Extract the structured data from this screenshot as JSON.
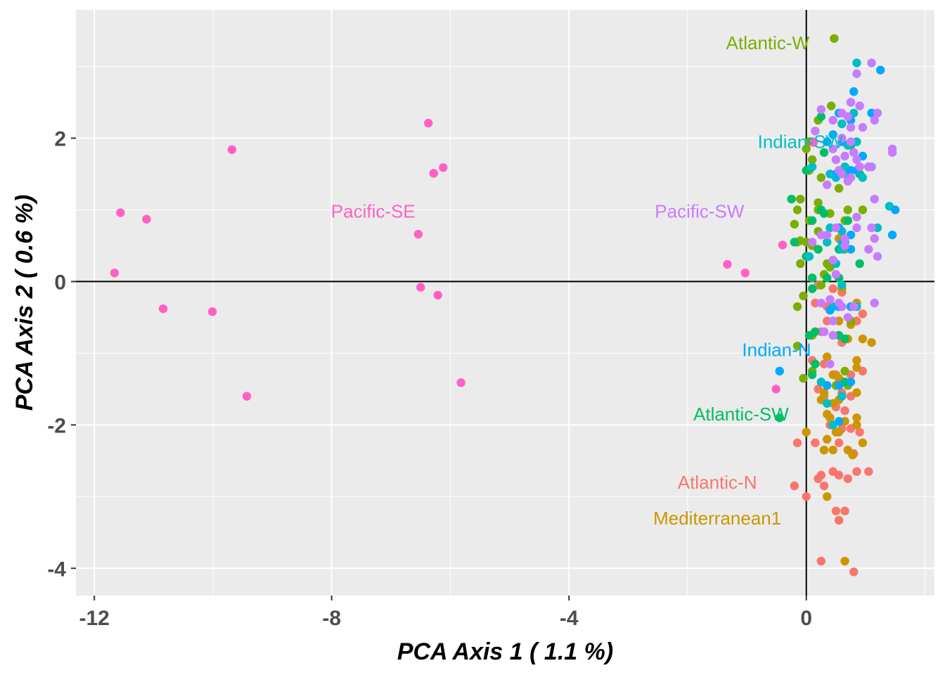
{
  "chart_data": {
    "type": "scatter",
    "title": "",
    "xlabel": "PCA Axis 1 ( 1.1 %)",
    "ylabel": "PCA Axis 2 ( 0.6 %)",
    "xlim": [
      -12.31,
      2.16
    ],
    "ylim": [
      -4.38,
      3.79
    ],
    "x_ticks": [
      -12,
      -8,
      -4,
      0
    ],
    "x_tick_labels": [
      "-12",
      "-8",
      "-4",
      "0"
    ],
    "y_ticks": [
      -4,
      -2,
      0,
      2
    ],
    "y_tick_labels": [
      "-4",
      "-2",
      "0",
      "2"
    ],
    "x_minor_ticks": [
      -10,
      -6,
      -2,
      2
    ],
    "y_minor_ticks": [
      -3,
      -1,
      1,
      3
    ],
    "grid": true,
    "reference_lines": {
      "x": 0,
      "y": 0
    },
    "background": "#ebebeb",
    "legend": "none (direct labels)",
    "series": [
      {
        "name": "Atlantic-N",
        "color": "#f8766d",
        "label_pos": [
          -1.5,
          -2.8
        ],
        "points": [
          [
            0.2,
            -0.05
          ],
          [
            0.45,
            -0.1
          ],
          [
            0.6,
            -0.15
          ],
          [
            0.25,
            -0.7
          ],
          [
            0.35,
            -0.55
          ],
          [
            0.85,
            -0.55
          ],
          [
            0.6,
            -0.85
          ],
          [
            0.95,
            -0.45
          ],
          [
            0.1,
            -1.1
          ],
          [
            0.3,
            -1.15
          ],
          [
            0.5,
            -1.3
          ],
          [
            0.75,
            -1.3
          ],
          [
            0.95,
            -1.25
          ],
          [
            0.2,
            -1.5
          ],
          [
            0.3,
            -1.6
          ],
          [
            0.6,
            -1.55
          ],
          [
            0.75,
            -1.6
          ],
          [
            0.5,
            -1.75
          ],
          [
            0.65,
            -1.8
          ],
          [
            0.4,
            -2.0
          ],
          [
            0.6,
            -2.05
          ],
          [
            0.75,
            -2.05
          ],
          [
            0.9,
            -2.1
          ],
          [
            -0.15,
            -2.25
          ],
          [
            0.15,
            -2.25
          ],
          [
            0.3,
            -2.35
          ],
          [
            0.55,
            -2.25
          ],
          [
            0.8,
            -2.4
          ],
          [
            0.25,
            -2.7
          ],
          [
            0.45,
            -2.65
          ],
          [
            0.55,
            -2.7
          ],
          [
            0.7,
            -2.75
          ],
          [
            0.85,
            -2.65
          ],
          [
            0.2,
            -2.75
          ],
          [
            0.3,
            -2.85
          ],
          [
            -0.2,
            -2.85
          ],
          [
            0.0,
            -3.0
          ],
          [
            0.5,
            -3.2
          ],
          [
            0.55,
            -3.33
          ],
          [
            0.65,
            -3.2
          ],
          [
            0.25,
            -3.9
          ],
          [
            0.8,
            -4.05
          ],
          [
            1.05,
            -2.65
          ],
          [
            0.15,
            -0.3
          ],
          [
            0.35,
            -0.35
          ]
        ]
      },
      {
        "name": "Mediterranean1",
        "color": "#cd9600",
        "label_pos": [
          -1.5,
          -3.3
        ],
        "points": [
          [
            0.55,
            0.6
          ],
          [
            0.6,
            -0.1
          ],
          [
            0.85,
            -0.3
          ],
          [
            0.55,
            -0.55
          ],
          [
            0.75,
            -0.6
          ],
          [
            0.7,
            -0.8
          ],
          [
            0.95,
            -0.8
          ],
          [
            1.1,
            -0.85
          ],
          [
            0.85,
            -1.1
          ],
          [
            0.85,
            -1.2
          ],
          [
            0.35,
            -1.05
          ],
          [
            0.45,
            -1.3
          ],
          [
            0.55,
            -1.35
          ],
          [
            0.3,
            -1.55
          ],
          [
            0.45,
            -1.7
          ],
          [
            0.35,
            -1.85
          ],
          [
            0.55,
            -1.65
          ],
          [
            0.4,
            -1.9
          ],
          [
            0.65,
            -1.95
          ],
          [
            0.85,
            -1.55
          ],
          [
            0.85,
            -1.9
          ],
          [
            0.5,
            -2.1
          ],
          [
            0.35,
            -2.2
          ],
          [
            0.55,
            -2.1
          ],
          [
            0.85,
            -2.0
          ],
          [
            0.0,
            -2.1
          ],
          [
            0.3,
            -2.35
          ],
          [
            0.45,
            -2.35
          ],
          [
            0.7,
            -2.35
          ],
          [
            0.78,
            -2.42
          ],
          [
            0.95,
            -2.25
          ],
          [
            0.35,
            -3.0
          ],
          [
            0.65,
            -3.9
          ],
          [
            0.25,
            -1.65
          ]
        ]
      },
      {
        "name": "Atlantic-W",
        "color": "#7cae00",
        "label_pos": [
          -0.65,
          3.33
        ],
        "points": [
          [
            0.47,
            3.39
          ],
          [
            0.2,
            2.25
          ],
          [
            0.42,
            2.45
          ],
          [
            0.05,
            1.95
          ],
          [
            0.0,
            1.85
          ],
          [
            0.1,
            1.7
          ],
          [
            0.05,
            1.55
          ],
          [
            0.25,
            1.45
          ],
          [
            0.55,
            1.3
          ],
          [
            0.2,
            1.1
          ],
          [
            -0.1,
            1.15
          ],
          [
            -0.15,
            1.0
          ],
          [
            0.2,
            1.0
          ],
          [
            0.4,
            0.95
          ],
          [
            0.05,
            0.85
          ],
          [
            0.65,
            0.85
          ],
          [
            0.7,
            1.0
          ],
          [
            -0.2,
            0.8
          ],
          [
            0.2,
            0.7
          ],
          [
            -0.15,
            0.55
          ],
          [
            -0.1,
            0.57
          ],
          [
            0.0,
            0.55
          ],
          [
            0.1,
            0.5
          ],
          [
            0.65,
            0.45
          ],
          [
            0.4,
            0.2
          ],
          [
            0.95,
            1.0
          ],
          [
            0.1,
            0.05
          ],
          [
            -0.1,
            0.25
          ],
          [
            0.35,
            0.25
          ],
          [
            0.3,
            0.1
          ],
          [
            -0.05,
            -0.2
          ],
          [
            -0.15,
            -0.35
          ],
          [
            -0.15,
            -0.9
          ],
          [
            0.1,
            -1.25
          ],
          [
            0.5,
            -1.45
          ],
          [
            0.75,
            -0.55
          ],
          [
            0.65,
            -1.25
          ],
          [
            0.7,
            -1.45
          ],
          [
            -0.05,
            -1.35
          ],
          [
            0.25,
            -0.05
          ],
          [
            0.1,
            -0.75
          ]
        ]
      },
      {
        "name": "Atlantic-SW",
        "color": "#00be67",
        "label_pos": [
          -1.1,
          -1.85
        ],
        "points": [
          [
            0.25,
            2.3
          ],
          [
            0.1,
            1.95
          ],
          [
            0.0,
            1.55
          ],
          [
            0.75,
            1.9
          ],
          [
            0.3,
            1.8
          ],
          [
            0.9,
            1.5
          ],
          [
            -0.25,
            1.15
          ],
          [
            0.1,
            0.85
          ],
          [
            0.3,
            0.95
          ],
          [
            0.25,
            1.0
          ],
          [
            0.7,
            0.85
          ],
          [
            0.55,
            0.75
          ],
          [
            0.55,
            0.45
          ],
          [
            0.9,
            0.25
          ],
          [
            0.1,
            0.05
          ],
          [
            -0.2,
            0.55
          ],
          [
            0.0,
            0.35
          ],
          [
            0.35,
            0.05
          ],
          [
            0.1,
            -0.1
          ],
          [
            0.55,
            0.05
          ],
          [
            0.55,
            -0.75
          ],
          [
            0.15,
            -0.7
          ],
          [
            0.65,
            -0.8
          ],
          [
            0.15,
            -1.15
          ],
          [
            0.1,
            -1.3
          ],
          [
            0.65,
            -1.4
          ],
          [
            -0.45,
            -1.9
          ],
          [
            0.05,
            -0.75
          ],
          [
            0.2,
            0.45
          ]
        ]
      },
      {
        "name": "Indian-SW",
        "color": "#00bfc4",
        "label_pos": [
          -0.1,
          1.95
        ],
        "points": [
          [
            0.85,
            3.05
          ],
          [
            0.75,
            2.5
          ],
          [
            0.8,
            2.35
          ],
          [
            0.6,
            2.2
          ],
          [
            0.85,
            1.95
          ],
          [
            0.7,
            1.9
          ],
          [
            0.65,
            1.6
          ],
          [
            0.1,
            1.6
          ],
          [
            0.65,
            1.5
          ],
          [
            0.95,
            1.45
          ],
          [
            1.1,
            1.6
          ],
          [
            0.4,
            1.5
          ],
          [
            0.5,
            1.45
          ],
          [
            1.4,
            1.05
          ],
          [
            0.4,
            0.75
          ],
          [
            0.6,
            0.7
          ],
          [
            1.2,
            0.75
          ],
          [
            0.35,
            0.55
          ],
          [
            0.6,
            0.55
          ],
          [
            0.05,
            0.35
          ],
          [
            0.6,
            0.45
          ],
          [
            0.5,
            0.25
          ],
          [
            0.6,
            -0.05
          ],
          [
            0.85,
            -0.35
          ],
          [
            0.45,
            -0.35
          ],
          [
            0.25,
            -1.4
          ],
          [
            0.35,
            -1.7
          ],
          [
            0.6,
            -1.6
          ],
          [
            0.45,
            -2.0
          ]
        ]
      },
      {
        "name": "Indian-N",
        "color": "#00a9ff",
        "label_pos": [
          -0.5,
          -0.95
        ],
        "points": [
          [
            1.25,
            2.95
          ],
          [
            0.8,
            2.65
          ],
          [
            0.55,
            2.35
          ],
          [
            0.75,
            2.25
          ],
          [
            1.1,
            2.35
          ],
          [
            0.6,
            1.95
          ],
          [
            0.35,
            1.95
          ],
          [
            0.45,
            2.05
          ],
          [
            0.95,
            1.75
          ],
          [
            1.05,
            1.6
          ],
          [
            0.85,
            1.55
          ],
          [
            0.5,
            1.5
          ],
          [
            0.75,
            1.55
          ],
          [
            1.5,
            1.0
          ],
          [
            0.55,
            0.75
          ],
          [
            0.75,
            0.65
          ],
          [
            1.45,
            0.65
          ],
          [
            0.65,
            0.55
          ],
          [
            0.75,
            0.45
          ],
          [
            0.55,
            -0.35
          ],
          [
            0.75,
            -0.35
          ],
          [
            0.55,
            -1.45
          ],
          [
            0.75,
            -1.4
          ],
          [
            -0.45,
            -1.25
          ],
          [
            0.35,
            -1.45
          ],
          [
            0.55,
            -1.95
          ],
          [
            0.4,
            -0.4
          ]
        ]
      },
      {
        "name": "Pacific-SW",
        "color": "#c77cff",
        "label_pos": [
          -1.8,
          0.98
        ],
        "points": [
          [
            0.85,
            2.9
          ],
          [
            1.1,
            3.05
          ],
          [
            0.75,
            2.5
          ],
          [
            0.9,
            2.45
          ],
          [
            0.6,
            2.35
          ],
          [
            0.7,
            2.3
          ],
          [
            0.25,
            2.4
          ],
          [
            0.45,
            2.25
          ],
          [
            0.75,
            2.15
          ],
          [
            0.95,
            2.15
          ],
          [
            1.15,
            2.25
          ],
          [
            1.2,
            2.35
          ],
          [
            0.15,
            2.1
          ],
          [
            0.6,
            2.0
          ],
          [
            0.75,
            1.95
          ],
          [
            0.85,
            1.7
          ],
          [
            0.8,
            1.8
          ],
          [
            0.65,
            1.75
          ],
          [
            0.5,
            1.7
          ],
          [
            1.45,
            1.8
          ],
          [
            1.45,
            1.85
          ],
          [
            0.45,
            1.85
          ],
          [
            0.55,
            1.55
          ],
          [
            1.05,
            1.6
          ],
          [
            1.1,
            1.6
          ],
          [
            0.9,
            1.6
          ],
          [
            0.6,
            1.5
          ],
          [
            0.75,
            1.45
          ],
          [
            0.35,
            1.35
          ],
          [
            0.7,
            1.4
          ],
          [
            1.15,
            1.15
          ],
          [
            0.85,
            0.9
          ],
          [
            0.5,
            0.75
          ],
          [
            1.1,
            0.75
          ],
          [
            0.85,
            0.75
          ],
          [
            1.15,
            0.6
          ],
          [
            1.05,
            0.45
          ],
          [
            0.65,
            0.6
          ],
          [
            1.2,
            0.35
          ],
          [
            0.35,
            0.65
          ],
          [
            0.45,
            0.3
          ],
          [
            0.5,
            0.1
          ],
          [
            0.6,
            -0.35
          ],
          [
            0.8,
            -0.35
          ],
          [
            0.55,
            -0.3
          ],
          [
            0.45,
            -0.55
          ],
          [
            0.3,
            -0.7
          ],
          [
            0.45,
            -0.75
          ],
          [
            0.65,
            0.5
          ],
          [
            0.4,
            -0.25
          ],
          [
            0.25,
            -0.3
          ],
          [
            0.7,
            -0.5
          ],
          [
            1.15,
            -0.3
          ],
          [
            0.1,
            0.55
          ],
          [
            0.25,
            0.65
          ],
          [
            0.4,
            -1.15
          ]
        ]
      },
      {
        "name": "Pacific-SE",
        "color": "#ff61c3",
        "label_pos": [
          -7.3,
          0.98
        ],
        "points": [
          [
            -11.56,
            0.96
          ],
          [
            -11.12,
            0.87
          ],
          [
            -11.66,
            0.12
          ],
          [
            -10.84,
            -0.38
          ],
          [
            -10.01,
            -0.42
          ],
          [
            -9.43,
            -1.6
          ],
          [
            -9.68,
            1.84
          ],
          [
            -6.37,
            2.21
          ],
          [
            -6.28,
            1.51
          ],
          [
            -6.12,
            1.59
          ],
          [
            -6.54,
            0.66
          ],
          [
            -6.5,
            -0.08
          ],
          [
            -6.21,
            -0.19
          ],
          [
            -5.82,
            -1.41
          ],
          [
            -1.33,
            0.24
          ],
          [
            -1.03,
            0.12
          ],
          [
            -0.4,
            0.51
          ],
          [
            -0.51,
            -1.5
          ],
          [
            0.12,
            1.94
          ]
        ]
      }
    ]
  }
}
